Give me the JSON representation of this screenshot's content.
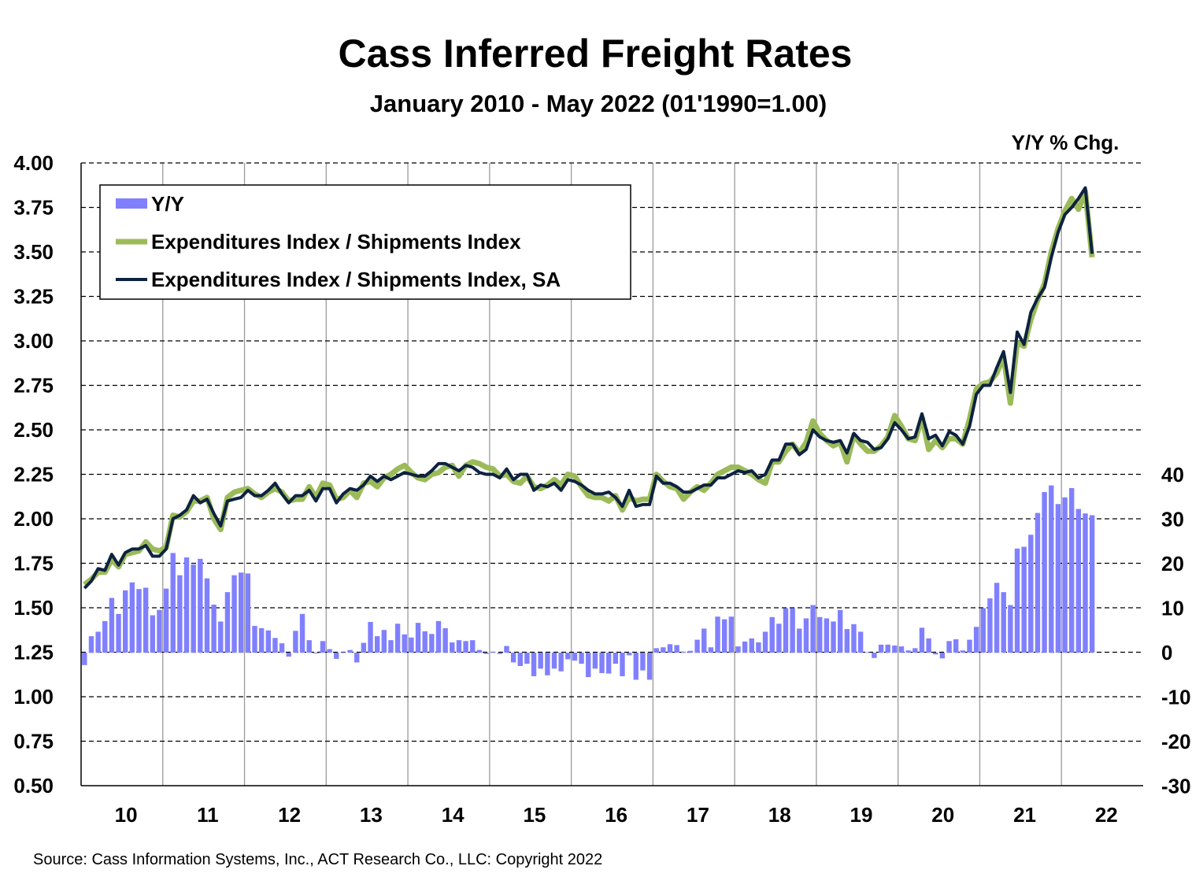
{
  "chart_data": {
    "type": "bar+line",
    "title": "Cass Inferred Freight Rates",
    "subtitle": "January 2010 - May 2022 (01'1990=1.00)",
    "right_axis_label": "Y/Y % Chg.",
    "source": "Source: Cass Information Systems, Inc., ACT Research Co., LLC: Copyright 2022",
    "frequency": "monthly",
    "start": "2010-01",
    "end": "2022-05",
    "x_tick_labels": [
      "10",
      "11",
      "12",
      "13",
      "14",
      "15",
      "16",
      "17",
      "18",
      "19",
      "20",
      "21",
      "22"
    ],
    "y_left": {
      "lim": [
        0.5,
        4.0
      ],
      "ticks": [
        "0.50",
        "0.75",
        "1.00",
        "1.25",
        "1.50",
        "1.75",
        "2.00",
        "2.25",
        "2.50",
        "2.75",
        "3.00",
        "3.25",
        "3.50",
        "3.75",
        "4.00"
      ]
    },
    "y_right": {
      "lim": [
        -30,
        110
      ],
      "ticks": [
        "-30",
        "-20",
        "-10",
        "0",
        "10",
        "20",
        "30",
        "40"
      ]
    },
    "grid": true,
    "legend_position": "top-left",
    "colors": {
      "yy": "#8080FF",
      "nsa": "#9BBB59",
      "sa": "#0D2240"
    },
    "series": [
      {
        "name": "Y/Y",
        "type": "bar",
        "axis": "right",
        "values": [
          -2.8,
          3.7,
          4.7,
          7.1,
          12.3,
          8.7,
          14,
          15.8,
          14.3,
          14.6,
          8.4,
          9.6,
          14.4,
          22.4,
          17.4,
          21.4,
          19.8,
          21.1,
          16.7,
          10.8,
          7,
          13.6,
          17.4,
          18,
          17.8,
          6,
          5.5,
          5,
          3.3,
          2.1,
          -0.9,
          4.9,
          8.7,
          2.8,
          -0.2,
          2.6,
          0.8,
          -1.4,
          0.1,
          0.6,
          -2.2,
          2.2,
          6.9,
          3.7,
          5.1,
          2.8,
          6.5,
          4.1,
          3.4,
          6.7,
          4.8,
          4.2,
          7.1,
          5.5,
          2.3,
          2.8,
          2.6,
          2.8,
          0.6,
          -0.3,
          0.2,
          -0.3,
          1.5,
          -2.2,
          -3,
          -2.5,
          -5.3,
          -3.6,
          -5.1,
          -3.6,
          -4.2,
          -1.5,
          -1.8,
          -2.5,
          -5.5,
          -3.6,
          -4.6,
          -4.7,
          -2.5,
          -5.3,
          -0.6,
          -6.1,
          -4,
          -6.1,
          1,
          1.2,
          1.9,
          1.7,
          0.2,
          0.4,
          2.9,
          5.4,
          1.2,
          8.1,
          7.5,
          8.1,
          1.4,
          2.5,
          3.2,
          2.3,
          4.7,
          8,
          6.5,
          10,
          10,
          5.4,
          7.7,
          10.7,
          8,
          7.7,
          7,
          9.6,
          5.3,
          6.4,
          4.7,
          0.1,
          -1.2,
          1.8,
          1.8,
          1.6,
          1.4,
          0.5,
          1,
          5.6,
          3.2,
          -0.4,
          -1.3,
          2.6,
          3,
          0.5,
          2.9,
          5.8,
          10,
          12.2,
          15.7,
          13.6,
          10.7,
          23.4,
          23.8,
          26.5,
          31.4,
          36.1,
          37.6,
          33.4,
          34.9,
          37,
          32.3,
          31.3,
          30.9
        ]
      },
      {
        "name": "Expenditures Index / Shipments Index",
        "type": "line",
        "axis": "left",
        "values": [
          1.63,
          1.66,
          1.7,
          1.7,
          1.77,
          1.73,
          1.8,
          1.81,
          1.82,
          1.87,
          1.83,
          1.82,
          1.84,
          2.02,
          2.01,
          2.04,
          2.1,
          2.1,
          2.12,
          2.0,
          1.94,
          2.12,
          2.15,
          2.16,
          2.17,
          2.14,
          2.12,
          2.15,
          2.17,
          2.15,
          2.1,
          2.11,
          2.11,
          2.18,
          2.12,
          2.2,
          2.19,
          2.11,
          2.12,
          2.16,
          2.12,
          2.2,
          2.21,
          2.18,
          2.23,
          2.25,
          2.28,
          2.3,
          2.26,
          2.23,
          2.22,
          2.25,
          2.26,
          2.29,
          2.3,
          2.24,
          2.3,
          2.32,
          2.31,
          2.29,
          2.28,
          2.24,
          2.25,
          2.21,
          2.2,
          2.24,
          2.18,
          2.17,
          2.19,
          2.22,
          2.19,
          2.25,
          2.24,
          2.18,
          2.13,
          2.12,
          2.12,
          2.1,
          2.13,
          2.05,
          2.12,
          2.1,
          2.11,
          2.11,
          2.25,
          2.21,
          2.18,
          2.17,
          2.11,
          2.15,
          2.18,
          2.16,
          2.2,
          2.25,
          2.27,
          2.29,
          2.29,
          2.27,
          2.25,
          2.22,
          2.2,
          2.32,
          2.32,
          2.38,
          2.42,
          2.37,
          2.43,
          2.55,
          2.48,
          2.44,
          2.41,
          2.43,
          2.32,
          2.47,
          2.42,
          2.38,
          2.38,
          2.41,
          2.46,
          2.58,
          2.52,
          2.45,
          2.44,
          2.57,
          2.39,
          2.44,
          2.4,
          2.45,
          2.45,
          2.42,
          2.56,
          2.73,
          2.76,
          2.77,
          2.82,
          2.91,
          2.65,
          2.99,
          2.97,
          3.12,
          3.23,
          3.32,
          3.5,
          3.63,
          3.73,
          3.8,
          3.74,
          3.84,
          3.47
        ]
      },
      {
        "name": "Expenditures Index / Shipments Index, SA",
        "type": "line",
        "axis": "left",
        "values": [
          1.61,
          1.65,
          1.72,
          1.71,
          1.8,
          1.74,
          1.81,
          1.83,
          1.83,
          1.85,
          1.79,
          1.79,
          1.83,
          2.0,
          2.02,
          2.05,
          2.13,
          2.09,
          2.11,
          2.03,
          1.96,
          2.1,
          2.11,
          2.12,
          2.16,
          2.13,
          2.13,
          2.16,
          2.2,
          2.14,
          2.09,
          2.13,
          2.13,
          2.16,
          2.1,
          2.17,
          2.17,
          2.09,
          2.14,
          2.17,
          2.16,
          2.19,
          2.24,
          2.21,
          2.24,
          2.22,
          2.24,
          2.26,
          2.25,
          2.24,
          2.24,
          2.27,
          2.31,
          2.31,
          2.29,
          2.27,
          2.3,
          2.29,
          2.26,
          2.25,
          2.25,
          2.23,
          2.28,
          2.22,
          2.25,
          2.25,
          2.16,
          2.19,
          2.18,
          2.2,
          2.16,
          2.22,
          2.21,
          2.19,
          2.16,
          2.14,
          2.14,
          2.15,
          2.12,
          2.07,
          2.16,
          2.07,
          2.08,
          2.08,
          2.24,
          2.2,
          2.2,
          2.18,
          2.15,
          2.15,
          2.17,
          2.19,
          2.19,
          2.23,
          2.23,
          2.25,
          2.27,
          2.26,
          2.27,
          2.23,
          2.25,
          2.33,
          2.33,
          2.42,
          2.42,
          2.36,
          2.39,
          2.5,
          2.46,
          2.44,
          2.43,
          2.44,
          2.37,
          2.48,
          2.44,
          2.43,
          2.39,
          2.4,
          2.45,
          2.54,
          2.5,
          2.45,
          2.46,
          2.59,
          2.45,
          2.47,
          2.41,
          2.49,
          2.47,
          2.42,
          2.52,
          2.7,
          2.75,
          2.75,
          2.85,
          2.94,
          2.71,
          3.05,
          2.98,
          3.16,
          3.24,
          3.3,
          3.47,
          3.61,
          3.71,
          3.75,
          3.8,
          3.86,
          3.49
        ]
      }
    ]
  }
}
